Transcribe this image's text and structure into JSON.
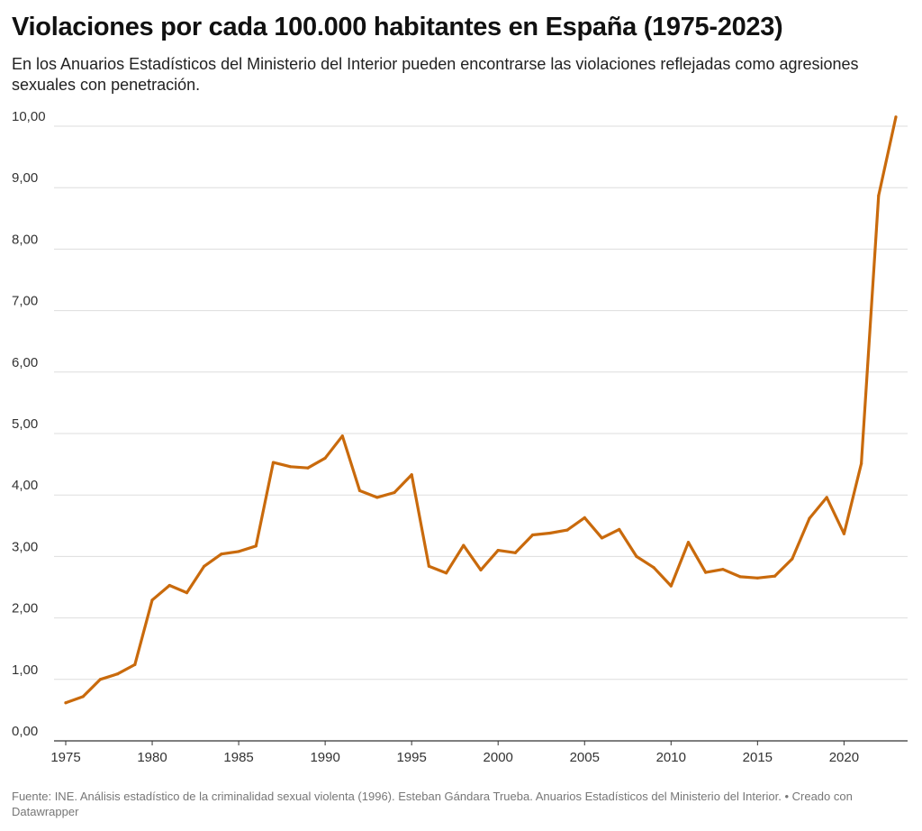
{
  "title": "Violaciones por cada 100.000 habitantes en España (1975-2023)",
  "subtitle": "En los Anuarios Estadísticos del Ministerio del Interior pueden encontrarse las violaciones reflejadas como agresiones sexuales con penetración.",
  "footer": {
    "source": "Fuente: INE. Análisis estadístico de la criminalidad sexual violenta (1996). Esteban Gándara Trueba. Anuarios Estadísticos del Ministerio del Interior. • Creado con Datawrapper"
  },
  "colors": {
    "line": "#c96a0c",
    "grid": "#dddddd",
    "axis": "#333333"
  },
  "chart_data": {
    "type": "line",
    "title": "Violaciones por cada 100.000 habitantes en España (1975-2023)",
    "xlabel": "",
    "ylabel": "",
    "xlim": [
      1975,
      2023
    ],
    "ylim": [
      0,
      10
    ],
    "grid": true,
    "x_ticks": [
      1975,
      1980,
      1985,
      1990,
      1995,
      2000,
      2005,
      2010,
      2015,
      2020
    ],
    "x_tick_labels": [
      "1975",
      "1980",
      "1985",
      "1990",
      "1995",
      "2000",
      "2005",
      "2010",
      "2015",
      "2020"
    ],
    "y_ticks": [
      0,
      1,
      2,
      3,
      4,
      5,
      6,
      7,
      8,
      9,
      10
    ],
    "y_tick_labels": [
      "0,00",
      "1,00",
      "2,00",
      "3,00",
      "4,00",
      "5,00",
      "6,00",
      "7,00",
      "8,00",
      "9,00",
      "10,00"
    ],
    "series": [
      {
        "x": [
          1975,
          1976,
          1977,
          1978,
          1979,
          1980,
          1981,
          1982,
          1983,
          1984,
          1985,
          1986,
          1987,
          1988,
          1989,
          1990,
          1991,
          1992,
          1993,
          1994,
          1995,
          1996,
          1997,
          1998,
          1999,
          2000,
          2001,
          2002,
          2003,
          2004,
          2005,
          2006,
          2007,
          2008,
          2009,
          2010,
          2011,
          2012,
          2013,
          2014,
          2015,
          2016,
          2017,
          2018,
          2019,
          2020,
          2021,
          2022,
          2023
        ],
        "values": [
          0.62,
          0.72,
          1.0,
          1.09,
          1.24,
          2.29,
          2.53,
          2.41,
          2.84,
          3.04,
          3.08,
          3.17,
          4.53,
          4.46,
          4.44,
          4.6,
          4.96,
          4.07,
          3.96,
          4.04,
          4.33,
          2.84,
          2.73,
          3.18,
          2.78,
          3.1,
          3.06,
          3.35,
          3.38,
          3.43,
          3.63,
          3.3,
          3.44,
          3.0,
          2.82,
          2.52,
          3.23,
          2.74,
          2.79,
          2.67,
          2.65,
          2.68,
          2.96,
          3.62,
          3.96,
          3.37,
          4.51,
          8.87,
          10.15
        ]
      }
    ]
  }
}
